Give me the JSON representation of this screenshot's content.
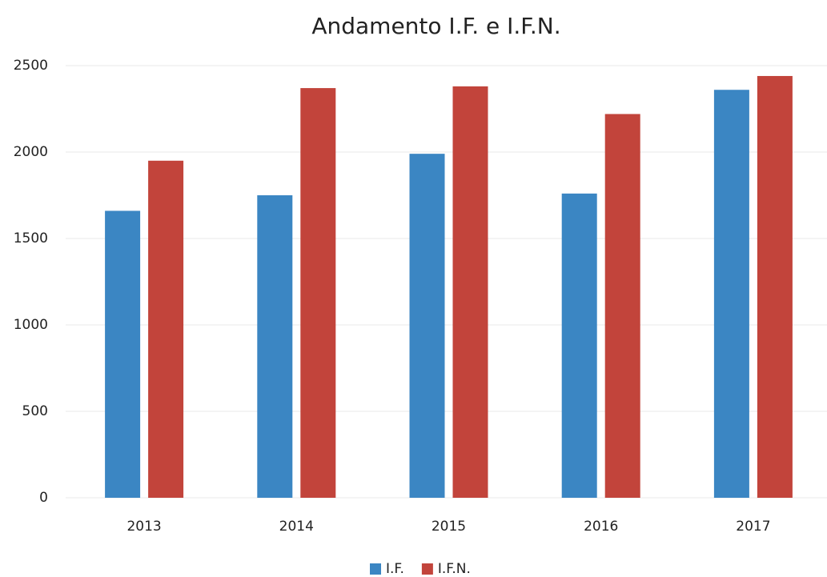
{
  "chart_data": {
    "type": "bar",
    "title": "Andamento I.F. e I.F.N.",
    "categories": [
      "2013",
      "2014",
      "2015",
      "2016",
      "2017"
    ],
    "series": [
      {
        "name": "I.F.",
        "color": "#3b86c3",
        "values": [
          1660,
          1750,
          1990,
          1760,
          2360
        ]
      },
      {
        "name": "I.F.N.",
        "color": "#c2443b",
        "values": [
          1950,
          2370,
          2380,
          2220,
          2440
        ]
      }
    ],
    "ylim": [
      0,
      2500
    ],
    "yticks": [
      0,
      500,
      1000,
      1500,
      2000,
      2500
    ],
    "grid": true,
    "legend": "bottom"
  }
}
